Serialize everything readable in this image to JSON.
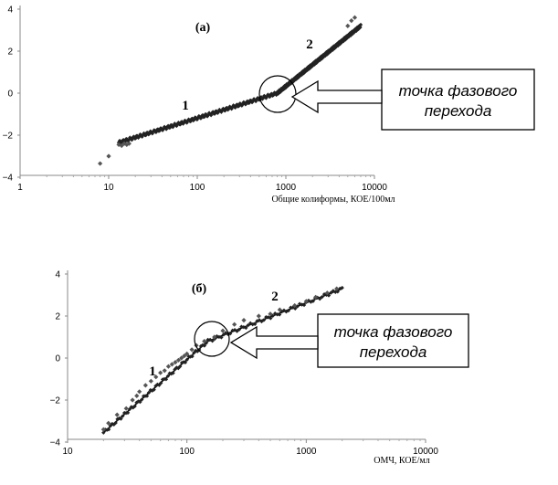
{
  "chart_data": [
    {
      "type": "scatter",
      "panel_label": "(а)",
      "xlabel": "Общие колиформы, КОЕ/100мл",
      "ylabel": "",
      "xscale": "log",
      "xlim": [
        1,
        10000
      ],
      "ylim": [
        -4,
        4
      ],
      "x_ticks": [
        "1",
        "10",
        "100",
        "1000",
        "10000"
      ],
      "y_ticks": [
        "4",
        "2",
        "0",
        "-2",
        "-4"
      ],
      "segment_labels": [
        "1",
        "2"
      ],
      "annotation": [
        "точка фазового",
        "перехода"
      ],
      "transition_point": {
        "x": 800,
        "y": 0
      },
      "trend_lines": [
        {
          "name": "1",
          "x": [
            13,
            800
          ],
          "y": [
            -2.35,
            0.0
          ]
        },
        {
          "name": "2",
          "x": [
            800,
            7000
          ],
          "y": [
            0.0,
            3.2
          ]
        }
      ],
      "series": [
        {
          "name": "",
          "x": [
            8,
            10,
            13,
            14,
            15,
            16,
            17
          ],
          "y": [
            -3.35,
            -3.0,
            -2.45,
            -2.5,
            -2.4,
            -2.45,
            -2.4
          ]
        },
        {
          "name": "",
          "x": [
            5000,
            5500,
            6000
          ],
          "y": [
            3.2,
            3.45,
            3.6
          ]
        }
      ]
    },
    {
      "type": "scatter",
      "panel_label": "(б)",
      "xlabel": "ОМЧ, КОЕ/мл",
      "ylabel": "",
      "xscale": "log",
      "xlim": [
        10,
        10000
      ],
      "ylim": [
        -4,
        4
      ],
      "x_ticks": [
        "10",
        "100",
        "1000",
        "10000"
      ],
      "y_ticks": [
        "4",
        "2",
        "0",
        "-2",
        "-4"
      ],
      "segment_labels": [
        "1",
        "2"
      ],
      "annotation": [
        "точка фазового",
        "перехода"
      ],
      "transition_point": {
        "x": 150,
        "y": 0.8
      },
      "trend_lines": [
        {
          "name": "1",
          "x": [
            20,
            150
          ],
          "y": [
            -3.55,
            0.8
          ]
        },
        {
          "name": "2",
          "x": [
            150,
            2000
          ],
          "y": [
            0.8,
            3.3
          ]
        }
      ],
      "series": [
        {
          "name": "",
          "x": [
            20,
            22,
            26,
            31,
            35,
            38,
            40,
            45,
            50,
            55,
            60,
            65,
            70,
            75,
            80,
            85,
            90,
            95,
            100,
            110,
            120,
            140,
            170,
            200,
            250,
            300,
            400,
            500,
            600,
            800,
            1000,
            1200,
            1500,
            1800
          ],
          "y": [
            -3.4,
            -3.1,
            -2.7,
            -2.4,
            -2.0,
            -1.8,
            -1.6,
            -1.3,
            -1.1,
            -0.9,
            -0.7,
            -0.6,
            -0.4,
            -0.3,
            -0.2,
            -0.1,
            0.0,
            0.1,
            0.2,
            0.4,
            0.6,
            0.8,
            1.0,
            1.3,
            1.6,
            1.8,
            2.0,
            2.1,
            2.3,
            2.5,
            2.7,
            2.9,
            3.1,
            3.3
          ]
        }
      ]
    }
  ]
}
